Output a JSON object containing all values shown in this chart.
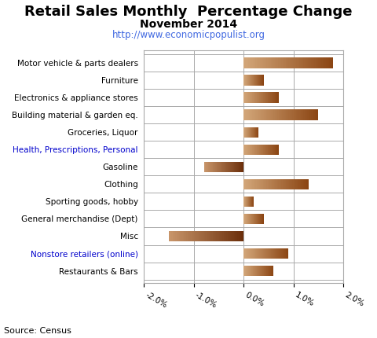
{
  "title": "Retail Sales Monthly  Percentage Change",
  "subtitle": "November 2014",
  "url": "http://www.economicpopulist.org",
  "source": "Source: Census",
  "categories": [
    "Motor vehicle & parts dealers",
    "Furniture",
    "Electronics & appliance stores",
    "Building material & garden eq.",
    "Groceries, Liquor",
    "Health, Prescriptions, Personal",
    "Gasoline",
    "Clothing",
    "Sporting goods, hobby",
    "General merchandise (Dept)",
    "Misc",
    "Nonstore retailers (online)",
    "Restaurants & Bars"
  ],
  "values": [
    1.8,
    0.4,
    0.7,
    1.5,
    0.3,
    0.7,
    -0.8,
    1.3,
    0.2,
    0.4,
    -1.5,
    0.9,
    0.6
  ],
  "xlim": [
    -2.0,
    2.0
  ],
  "xticks": [
    -2.0,
    -1.0,
    0.0,
    1.0,
    2.0
  ],
  "bar_height": 0.6,
  "color_pos_light": "#D2A679",
  "color_pos_dark": "#8B4513",
  "color_neg_light": "#C8956A",
  "color_neg_dark": "#6B2E0A",
  "grid_color": "#AAAAAA",
  "background_color": "#FFFFFF",
  "title_fontsize": 13,
  "subtitle_fontsize": 10,
  "url_color": "#4169E1",
  "label_color_default": "#000000",
  "label_color_special": "#0000CC",
  "special_labels": [
    "Health, Prescriptions, Personal",
    "Nonstore retailers (online)"
  ]
}
